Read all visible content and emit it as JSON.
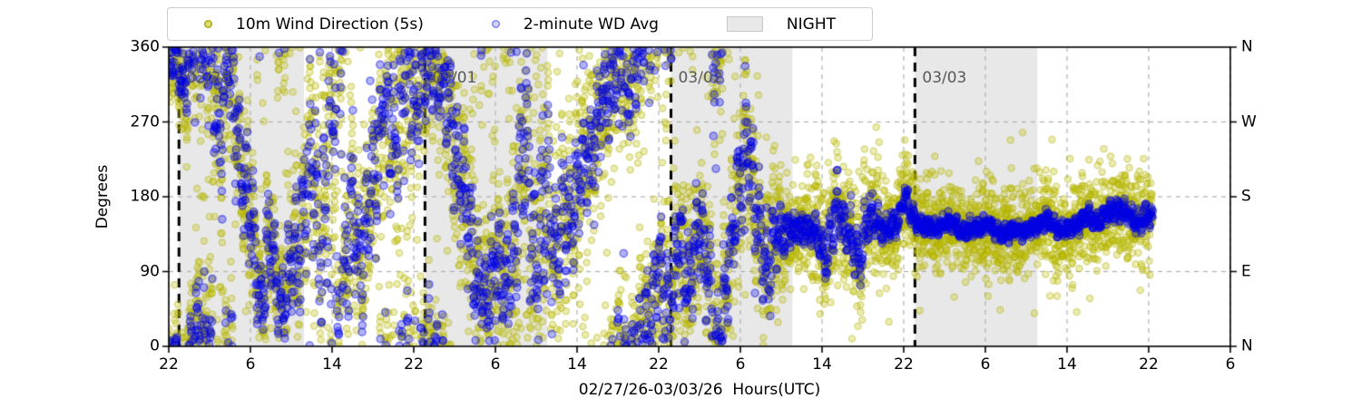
{
  "chart_data": {
    "type": "scatter",
    "title": "",
    "xlabel": "02/27/26-03/03/26  Hours(UTC)",
    "ylabel": "Degrees",
    "x_axis": {
      "start_label": "02/27/26 22:00 UTC",
      "total_hours": 104,
      "tick_hours": [
        0,
        8,
        16,
        24,
        32,
        40,
        48,
        56,
        64,
        72,
        80,
        88,
        96,
        104
      ],
      "tick_labels": [
        "22",
        "6",
        "14",
        "22",
        "6",
        "14",
        "22",
        "6",
        "14",
        "22",
        "6",
        "14",
        "22",
        "6"
      ]
    },
    "y_axis": {
      "min": 0,
      "max": 360,
      "tick_values": [
        0,
        90,
        180,
        270,
        360
      ],
      "tick_labels": [
        "0",
        "90",
        "180",
        "270",
        "360"
      ],
      "grid_values": [
        90,
        180,
        270
      ]
    },
    "right_axis": {
      "tick_values": [
        360,
        270,
        180,
        90,
        0
      ],
      "tick_labels": [
        "N",
        "W",
        "S",
        "E",
        "N"
      ]
    },
    "legend": {
      "series1": "10m Wind Direction (5s)",
      "series2": "2-minute WD Avg",
      "night": "NIGHT"
    },
    "colors": {
      "wind_5s": "#bfbf00",
      "wd_avg": "#0000e6",
      "night_fill": "#e8e8e8",
      "night_edge": "#c8c8c8",
      "grid": "#b0b0b0",
      "date_line": "#000000",
      "date_label": "#595959",
      "spine": "#000000"
    },
    "night_bands_hours": [
      [
        1.0,
        13.25
      ],
      [
        25.1,
        37.1
      ],
      [
        49.2,
        61.1
      ],
      [
        73.1,
        85.1
      ]
    ],
    "date_lines": [
      {
        "hour": 1.0,
        "label": "02/28"
      },
      {
        "hour": 25.1,
        "label": "03/01"
      },
      {
        "hour": 49.2,
        "label": "03/02"
      },
      {
        "hour": 73.1,
        "label": "03/03"
      }
    ],
    "sampling": {
      "wind_5s_plot_step_hours": 0.0166667,
      "wd_avg_step_hours": 0.0333333,
      "data_end_hour": 96.4
    },
    "avg_waypoints_t_deg_bluejitter_yellowspread": [
      [
        0,
        335,
        25,
        30
      ],
      [
        0.7,
        350,
        20,
        30
      ],
      [
        1.5,
        315,
        30,
        35
      ],
      [
        2.2,
        350,
        30,
        35
      ],
      [
        3,
        30,
        50,
        40
      ],
      [
        4,
        340,
        60,
        45
      ],
      [
        5,
        250,
        70,
        50
      ],
      [
        5.8,
        355,
        50,
        40
      ],
      [
        6.5,
        280,
        60,
        45
      ],
      [
        7.2,
        210,
        50,
        45
      ],
      [
        8,
        150,
        50,
        40
      ],
      [
        9,
        60,
        40,
        40
      ],
      [
        10,
        120,
        50,
        45
      ],
      [
        11,
        40,
        45,
        40
      ],
      [
        12,
        90,
        50,
        45
      ],
      [
        13,
        150,
        60,
        50
      ],
      [
        14,
        220,
        90,
        60
      ],
      [
        15,
        120,
        90,
        60
      ],
      [
        16,
        280,
        95,
        60
      ],
      [
        17,
        60,
        85,
        60
      ],
      [
        18,
        160,
        60,
        50
      ],
      [
        19,
        100,
        50,
        45
      ],
      [
        20,
        200,
        70,
        50
      ],
      [
        21,
        300,
        60,
        50
      ],
      [
        22,
        250,
        70,
        55
      ],
      [
        23,
        330,
        80,
        55
      ],
      [
        24,
        300,
        60,
        50
      ],
      [
        25,
        330,
        50,
        45
      ],
      [
        26,
        345,
        45,
        40
      ],
      [
        27,
        310,
        50,
        45
      ],
      [
        28,
        250,
        60,
        50
      ],
      [
        29,
        180,
        60,
        50
      ],
      [
        30,
        90,
        55,
        50
      ],
      [
        31,
        40,
        45,
        45
      ],
      [
        32,
        110,
        50,
        45
      ],
      [
        33,
        60,
        50,
        45
      ],
      [
        34,
        150,
        80,
        60
      ],
      [
        35,
        240,
        90,
        60
      ],
      [
        36,
        100,
        90,
        60
      ],
      [
        37,
        190,
        90,
        60
      ],
      [
        38,
        120,
        60,
        50
      ],
      [
        39,
        150,
        55,
        50
      ],
      [
        40,
        190,
        50,
        50
      ],
      [
        41,
        230,
        50,
        48
      ],
      [
        42,
        270,
        48,
        46
      ],
      [
        43,
        310,
        45,
        45
      ],
      [
        44,
        350,
        42,
        42
      ],
      [
        45,
        320,
        50,
        44
      ],
      [
        46,
        350,
        45,
        44
      ],
      [
        47,
        30,
        50,
        45
      ],
      [
        48,
        80,
        55,
        48
      ],
      [
        49,
        50,
        50,
        45
      ],
      [
        50,
        110,
        50,
        45
      ],
      [
        51,
        80,
        45,
        42
      ],
      [
        52,
        140,
        45,
        42
      ],
      [
        53,
        90,
        45,
        42
      ],
      [
        53.6,
        320,
        55,
        48
      ],
      [
        54.4,
        50,
        50,
        45
      ],
      [
        55,
        120,
        45,
        42
      ],
      [
        56,
        190,
        50,
        45
      ],
      [
        56.6,
        280,
        50,
        45
      ],
      [
        57.5,
        150,
        48,
        42
      ],
      [
        58.5,
        100,
        42,
        40
      ],
      [
        59.5,
        130,
        30,
        36
      ],
      [
        60.5,
        140,
        18,
        32
      ],
      [
        61.5,
        138,
        13,
        30
      ],
      [
        62.5,
        145,
        12,
        30
      ],
      [
        63.5,
        132,
        14,
        30
      ],
      [
        64.5,
        112,
        26,
        36
      ],
      [
        65.5,
        165,
        26,
        36
      ],
      [
        66.5,
        140,
        22,
        34
      ],
      [
        67.5,
        98,
        28,
        40
      ],
      [
        68.5,
        158,
        22,
        34
      ],
      [
        69.5,
        148,
        13,
        30
      ],
      [
        70.5,
        140,
        12,
        28
      ],
      [
        71.5,
        150,
        13,
        28
      ],
      [
        72,
        185,
        15,
        30
      ],
      [
        73,
        150,
        11,
        28
      ],
      [
        74,
        145,
        9,
        27
      ],
      [
        75,
        140,
        8,
        26
      ],
      [
        76,
        150,
        8,
        26
      ],
      [
        77,
        146,
        8,
        26
      ],
      [
        78,
        138,
        8,
        26
      ],
      [
        79,
        142,
        8,
        26
      ],
      [
        80,
        148,
        8,
        26
      ],
      [
        81,
        140,
        8,
        26
      ],
      [
        82,
        134,
        8,
        26
      ],
      [
        83,
        142,
        8,
        26
      ],
      [
        84,
        138,
        8,
        26
      ],
      [
        85,
        146,
        8,
        26
      ],
      [
        86,
        151,
        8,
        26
      ],
      [
        87,
        143,
        8,
        26
      ],
      [
        88,
        139,
        8,
        26
      ],
      [
        89,
        148,
        9,
        26
      ],
      [
        90,
        156,
        9,
        26
      ],
      [
        91,
        150,
        9,
        26
      ],
      [
        92,
        160,
        10,
        26
      ],
      [
        93,
        166,
        10,
        26
      ],
      [
        94,
        157,
        10,
        26
      ],
      [
        95,
        149,
        10,
        27
      ],
      [
        96,
        156,
        10,
        27
      ],
      [
        96.4,
        162,
        10,
        27
      ]
    ]
  }
}
